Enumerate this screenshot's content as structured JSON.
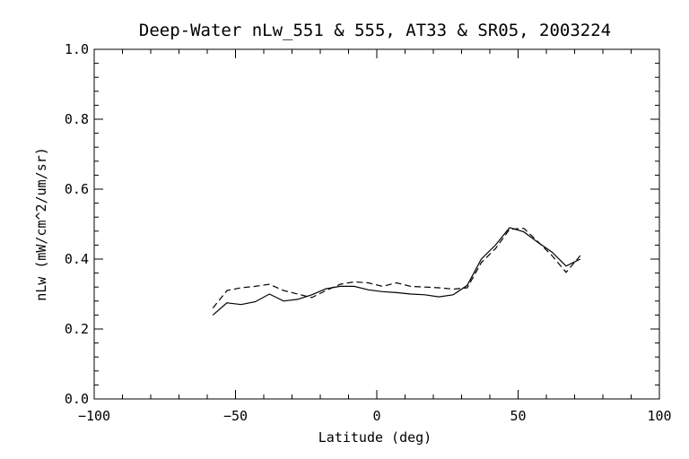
{
  "chart_data": {
    "type": "line",
    "title": "Deep-Water nLw_551 & 555, AT33 & SR05, 2003224",
    "xlabel": "Latitude (deg)",
    "ylabel": "nLw (mW/cm^2/um/sr)",
    "xlim": [
      -100,
      100
    ],
    "ylim": [
      0.0,
      1.0
    ],
    "xticks": [
      -100,
      -50,
      0,
      50,
      100
    ],
    "xtick_labels": [
      "−100",
      "−50",
      "0",
      "50",
      "100"
    ],
    "yticks": [
      0.0,
      0.2,
      0.4,
      0.6,
      0.8,
      1.0
    ],
    "ytick_labels": [
      "0.0",
      "0.2",
      "0.4",
      "0.6",
      "0.8",
      "1.0"
    ],
    "grid": false,
    "series": [
      {
        "style": "solid",
        "x": [
          -58,
          -53,
          -48,
          -43,
          -38,
          -33,
          -28,
          -23,
          -18,
          -13,
          -8,
          -3,
          2,
          7,
          12,
          17,
          22,
          27,
          32,
          37,
          42,
          47,
          52,
          57,
          62,
          67,
          72
        ],
        "y": [
          0.24,
          0.275,
          0.27,
          0.278,
          0.3,
          0.28,
          0.285,
          0.298,
          0.315,
          0.322,
          0.322,
          0.312,
          0.307,
          0.304,
          0.3,
          0.298,
          0.292,
          0.298,
          0.325,
          0.4,
          0.44,
          0.49,
          0.478,
          0.448,
          0.42,
          0.38,
          0.4
        ]
      },
      {
        "style": "dashed",
        "x": [
          -58,
          -53,
          -48,
          -43,
          -38,
          -33,
          -28,
          -23,
          -18,
          -13,
          -8,
          -3,
          2,
          7,
          12,
          17,
          22,
          27,
          32,
          37,
          42,
          47,
          52,
          57,
          62,
          67,
          72
        ],
        "y": [
          0.26,
          0.31,
          0.318,
          0.322,
          0.328,
          0.31,
          0.3,
          0.29,
          0.31,
          0.328,
          0.335,
          0.332,
          0.322,
          0.332,
          0.322,
          0.32,
          0.318,
          0.314,
          0.318,
          0.39,
          0.43,
          0.485,
          0.488,
          0.45,
          0.41,
          0.362,
          0.41
        ]
      }
    ]
  }
}
